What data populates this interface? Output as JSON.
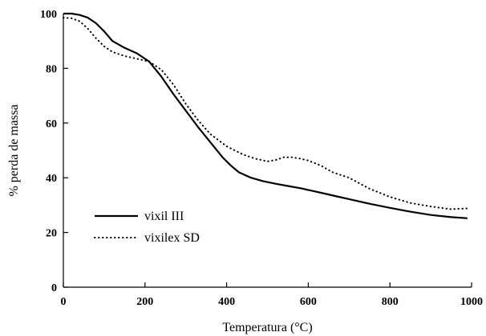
{
  "chart_data": {
    "type": "line",
    "title": "",
    "xlabel": "Temperatura (°C)",
    "ylabel": "% perda de massa",
    "xlim": [
      0,
      1000
    ],
    "ylim": [
      0,
      100
    ],
    "xticks": [
      0,
      200,
      400,
      600,
      800,
      1000
    ],
    "yticks": [
      0,
      20,
      40,
      60,
      80,
      100
    ],
    "grid": false,
    "legend_position": "bottom-left",
    "series": [
      {
        "name": "vixil III",
        "style": "solid",
        "color": "#000000",
        "x": [
          0,
          20,
          40,
          60,
          80,
          100,
          120,
          150,
          180,
          210,
          240,
          270,
          300,
          330,
          360,
          390,
          410,
          430,
          460,
          490,
          520,
          550,
          580,
          610,
          640,
          670,
          700,
          750,
          800,
          850,
          900,
          950,
          990
        ],
        "y": [
          100,
          100,
          99.5,
          98.5,
          96.5,
          93.5,
          90,
          87.5,
          85.5,
          82.5,
          77,
          70.5,
          64.5,
          58.5,
          53,
          47.5,
          44.5,
          42,
          40,
          38.7,
          37.8,
          37,
          36.2,
          35.2,
          34.2,
          33.2,
          32.2,
          30.5,
          29,
          27.6,
          26.4,
          25.6,
          25.2
        ]
      },
      {
        "name": "vixilex SD",
        "style": "dotted",
        "color": "#000000",
        "x": [
          0,
          20,
          40,
          60,
          80,
          100,
          120,
          150,
          180,
          210,
          240,
          270,
          300,
          330,
          360,
          400,
          440,
          470,
          500,
          520,
          540,
          560,
          580,
          600,
          630,
          660,
          700,
          750,
          800,
          850,
          900,
          950,
          990
        ],
        "y": [
          98.5,
          98.3,
          97.2,
          94.5,
          91,
          88,
          86,
          84.5,
          83.5,
          82.5,
          79.5,
          74,
          67,
          61,
          56,
          51.5,
          48.5,
          47,
          46,
          46.5,
          47.5,
          47.5,
          47,
          46.3,
          44.5,
          42,
          40,
          36,
          33,
          30.8,
          29.5,
          28.5,
          28.8
        ]
      }
    ]
  }
}
